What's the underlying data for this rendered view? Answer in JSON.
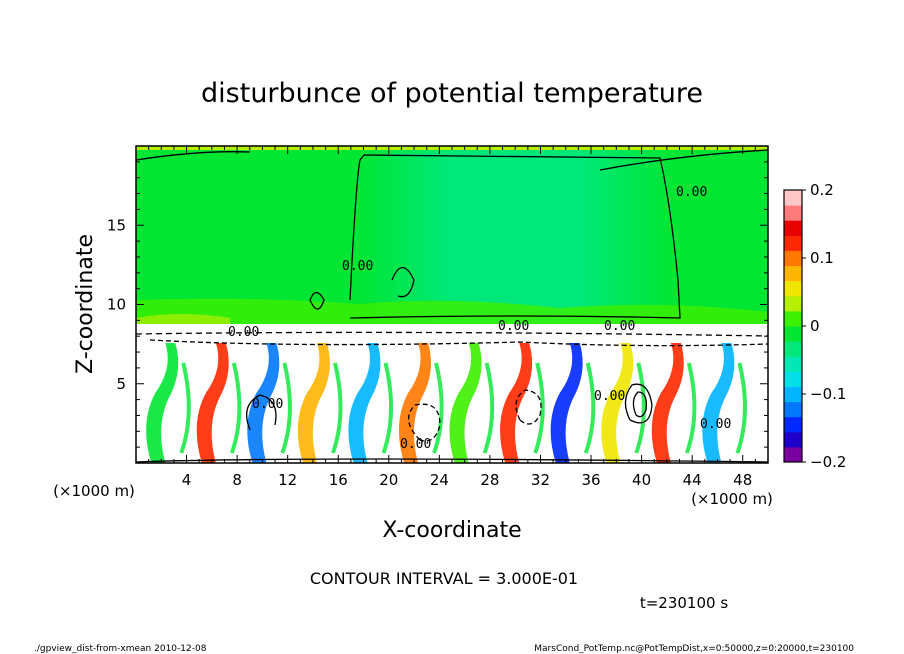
{
  "chart_data": {
    "type": "heatmap",
    "title": "disturbunce of potential temperature",
    "xlabel": "X-coordinate",
    "ylabel": "Z-coordinate",
    "x_unit": "(×1000 m)",
    "y_unit": "(×1000 m)",
    "xlim": [
      0,
      50
    ],
    "ylim": [
      0,
      20
    ],
    "x_ticks": [
      4,
      8,
      12,
      16,
      20,
      24,
      28,
      32,
      36,
      40,
      44,
      48
    ],
    "y_ticks": [
      5,
      10,
      15
    ],
    "colorbar": {
      "range": [
        -0.2,
        0.2
      ],
      "ticks": [
        0.2,
        0.1,
        0,
        -0.1,
        -0.2
      ],
      "tick_labels": [
        "0.2",
        "0.1",
        "0",
        "−0.1",
        "−0.2"
      ],
      "colors": [
        "#7a00a0",
        "#1e00c8",
        "#0028ff",
        "#0078ff",
        "#00b4ff",
        "#00e0e6",
        "#00e8b4",
        "#00e87a",
        "#00e632",
        "#3cf000",
        "#b4f000",
        "#f0e600",
        "#ffb400",
        "#ff7800",
        "#ff2800",
        "#e60000",
        "#ff7a7a",
        "#ffc8c8"
      ]
    },
    "contour_interval": "CONTOUR INTERVAL = 3.000E-01",
    "contour_labels": [
      "0.00",
      "0.00",
      "0.00",
      "0.00",
      "0.00",
      "0.00",
      "0.00",
      "0.00",
      "0.00"
    ],
    "time_label": "t=230100 s",
    "footer_left": "./gpview_dist-from-xmean  2010-12-08",
    "footer_right": "MarsCond_PotTemp.nc@PotTempDist,x=0:50000,z=0:20000,t=230100"
  },
  "colors": {
    "upper_green": "#00e632",
    "bright_green": "#3cf000",
    "central_band": "#00e87a",
    "boundary_yellow": "#b4f000"
  }
}
